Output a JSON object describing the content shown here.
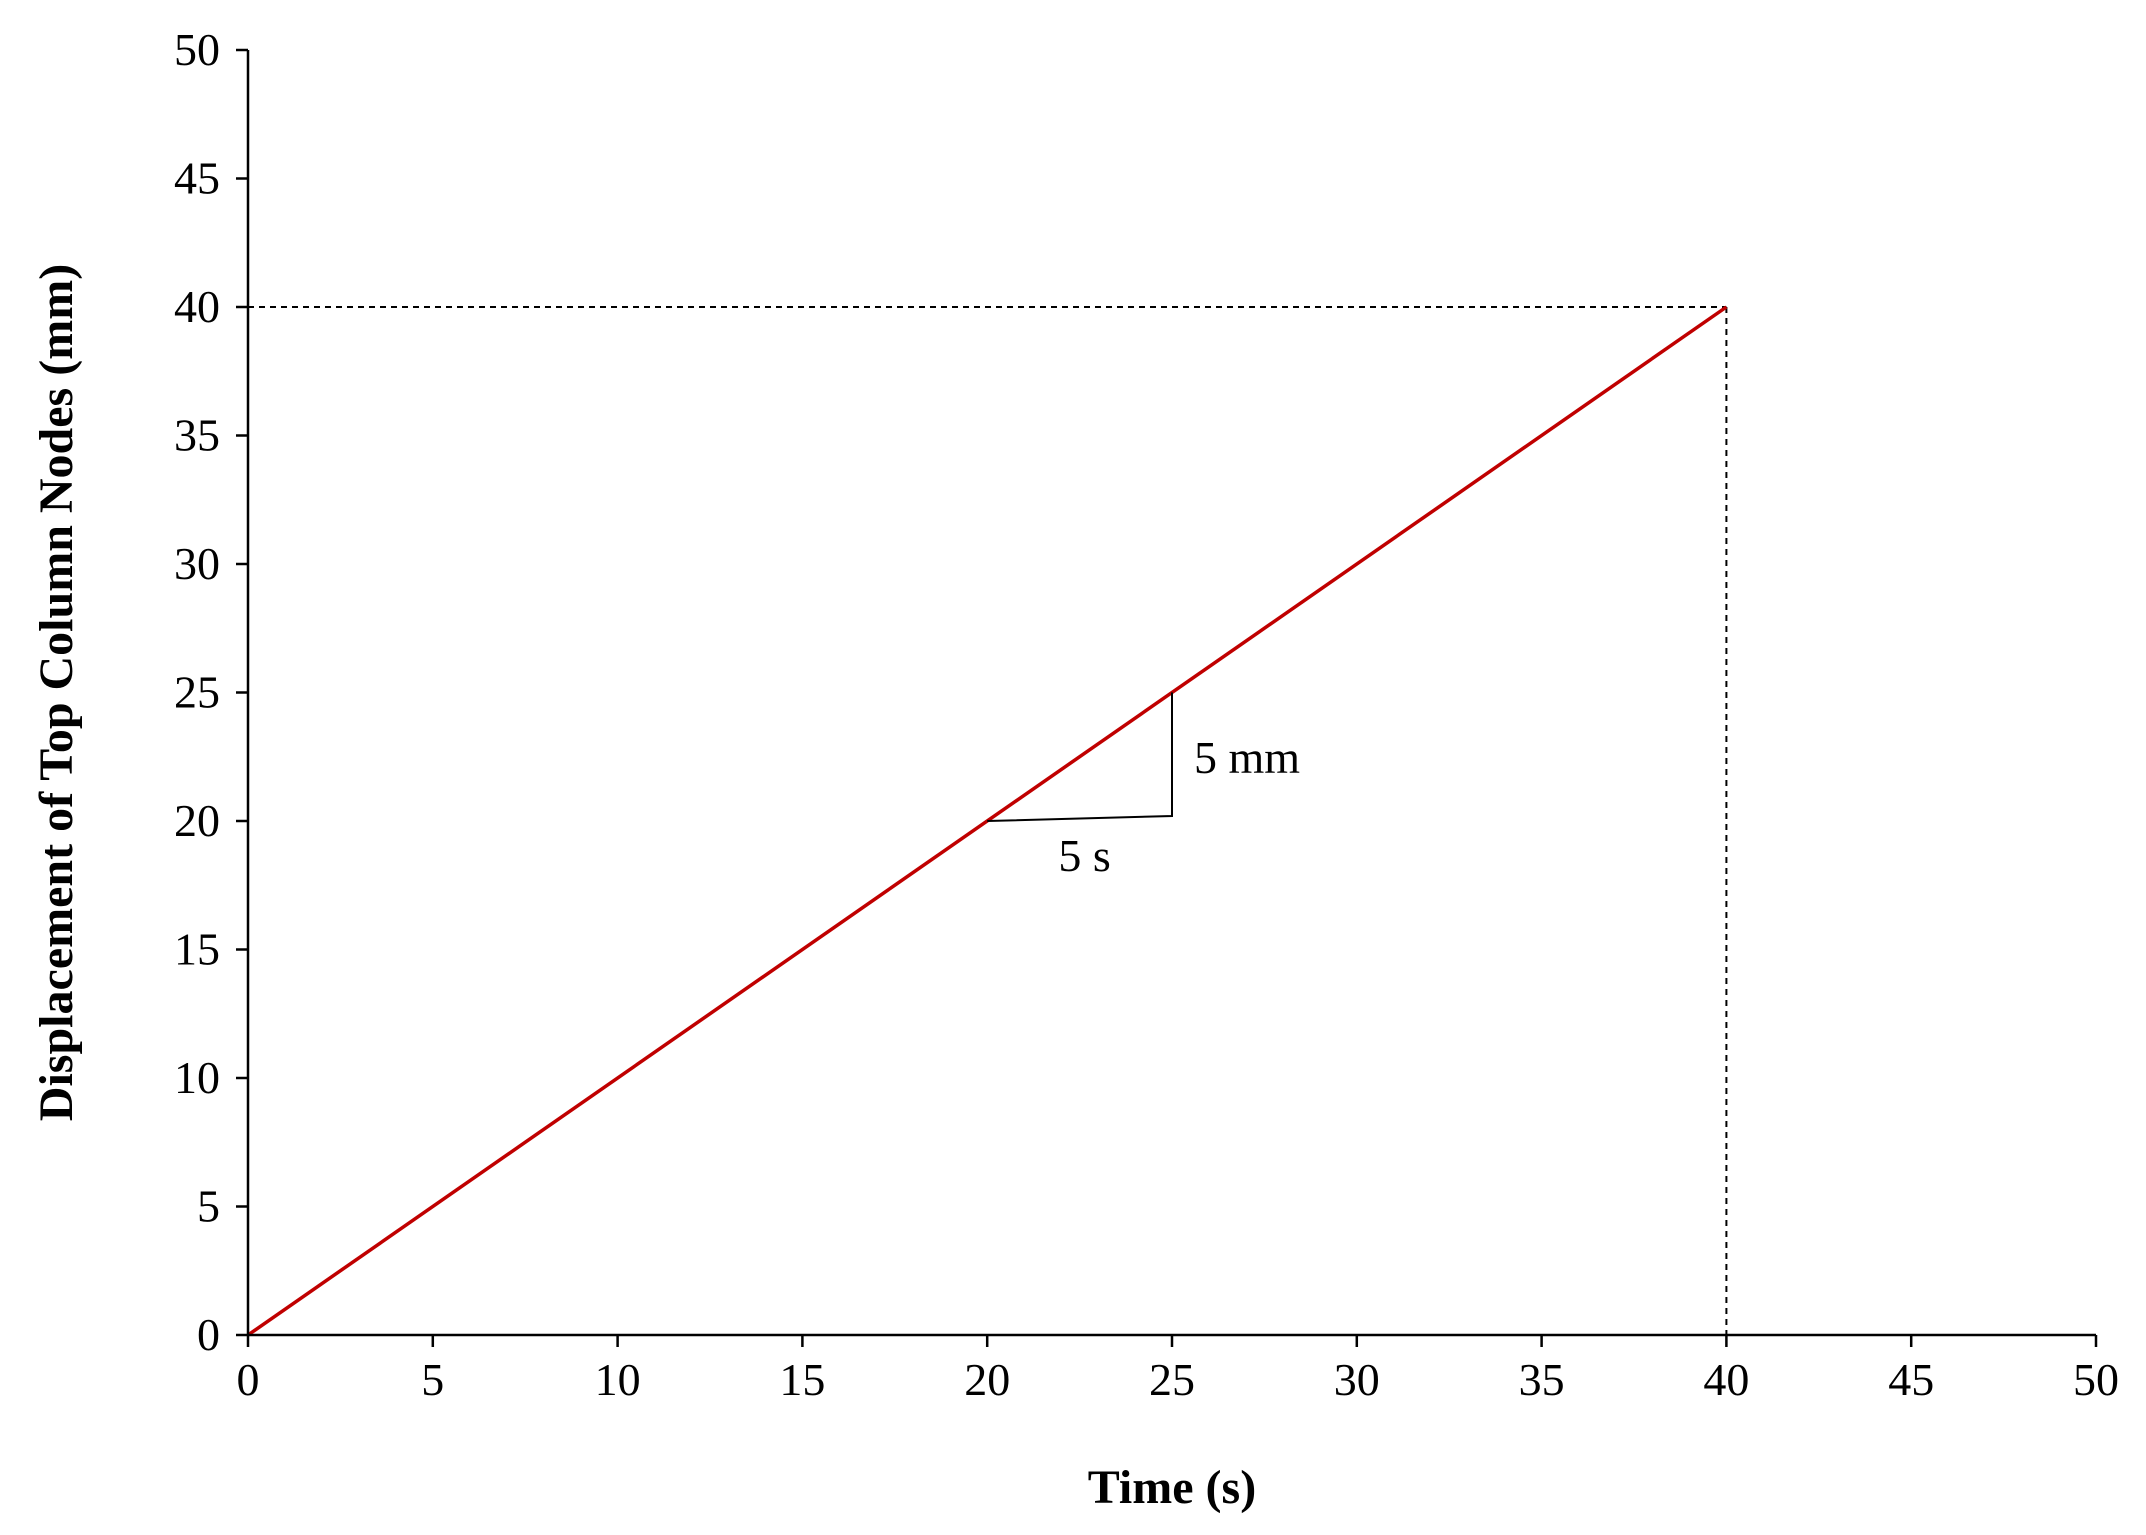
{
  "chart_data": {
    "type": "line",
    "xlabel": "Time (s)",
    "ylabel": "Displacement of Top Column Nodes (mm)",
    "xlim": [
      0,
      50
    ],
    "ylim": [
      0,
      50
    ],
    "xticks": [
      "0",
      "5",
      "10",
      "15",
      "20",
      "25",
      "30",
      "35",
      "40",
      "45",
      "50"
    ],
    "yticks": [
      "0",
      "5",
      "10",
      "15",
      "20",
      "25",
      "30",
      "35",
      "40",
      "45",
      "50"
    ],
    "grid": false,
    "legend": "none",
    "series": [
      {
        "x": [
          0,
          40
        ],
        "y": [
          0,
          40
        ],
        "color": "#c00000"
      }
    ],
    "guides": {
      "x": 40,
      "y": 40,
      "style": "dashed",
      "color": "#000000"
    },
    "slope_triangle": {
      "x_start": 20,
      "x_end": 25,
      "y_start": 20,
      "y_end": 25,
      "dx_label": "5 s",
      "dy_label": "5 mm"
    }
  }
}
